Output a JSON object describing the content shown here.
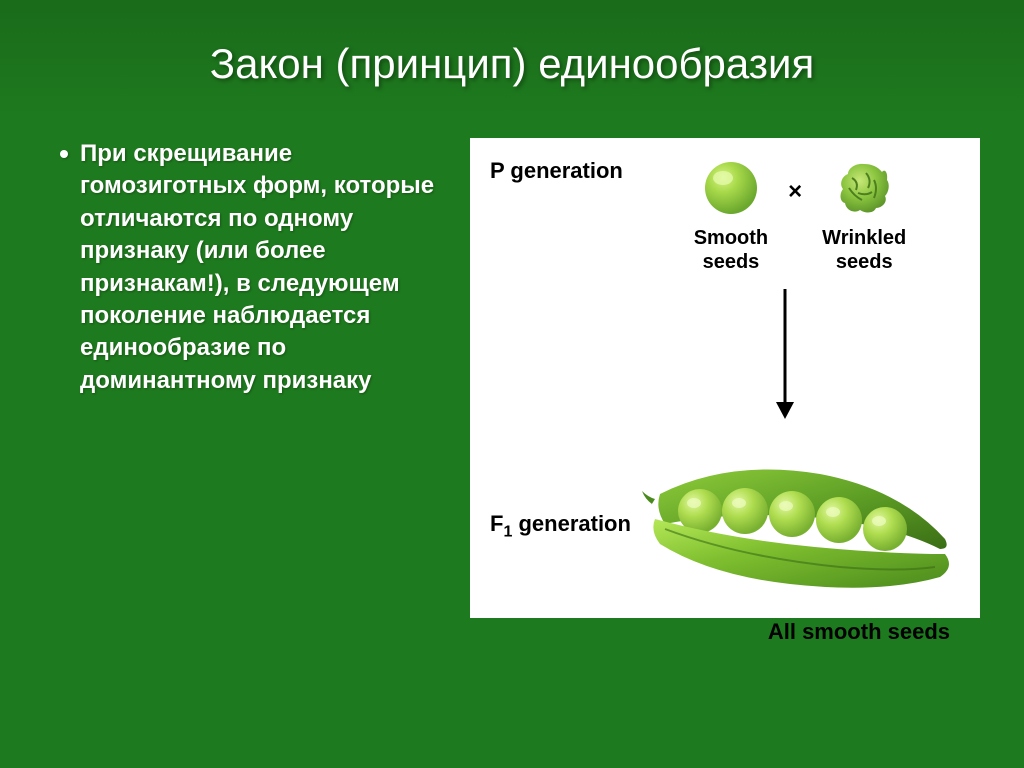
{
  "title": "Закон (принцип) единообразия",
  "bullet_text": "При скрещивание гомозиготных форм, которые отличаются по одному признаку (или более признакам!), в следующем поколение наблюдается единообразие по доминантному признаку",
  "diagram": {
    "p_label": "P generation",
    "f1_label_prefix": "F",
    "f1_label_sub": "1",
    "f1_label_suffix": " generation",
    "smooth_label": "Smooth\nseeds",
    "wrinkled_label": "Wrinkled\nseeds",
    "cross_symbol": "×",
    "result_label": "All smooth seeds",
    "colors": {
      "pea_light": "#b8e04a",
      "pea_mid": "#8bc53f",
      "pea_dark": "#5a9e2f",
      "pea_highlight": "#d4f080",
      "pod_light": "#9dd840",
      "pod_mid": "#6fb52e",
      "pod_dark": "#3e7818",
      "text": "#000000",
      "bg": "#ffffff"
    },
    "arrow_length": 130,
    "seed_count": 5
  },
  "style": {
    "slide_bg": "#1e7a1e",
    "title_color": "#ffffff",
    "title_fontsize": 42,
    "body_color": "#ffffff",
    "body_fontsize": 24
  }
}
